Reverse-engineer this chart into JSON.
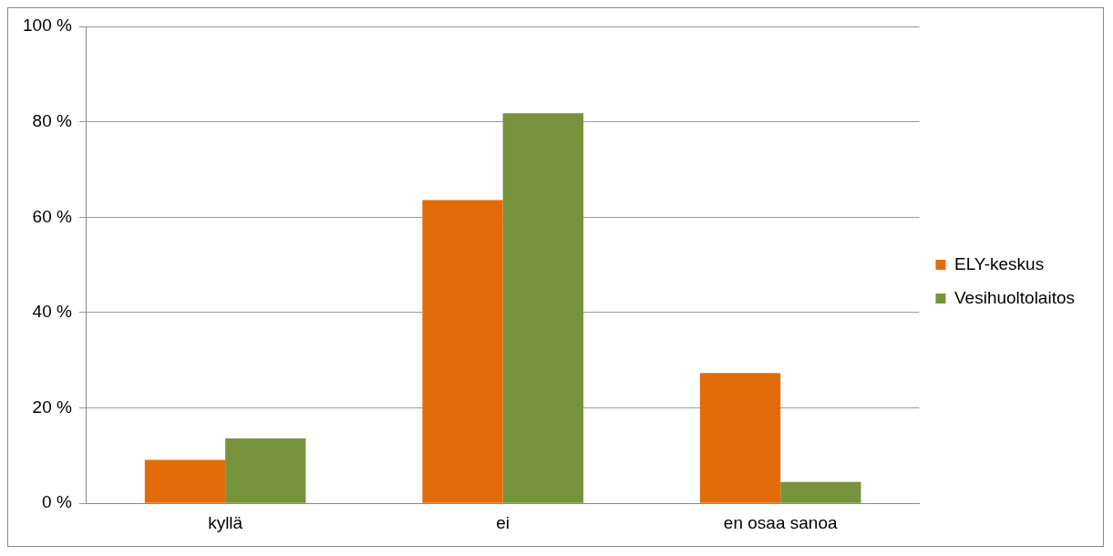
{
  "chart_data": {
    "type": "bar",
    "categories": [
      "kyllä",
      "ei",
      "en osaa sanoa"
    ],
    "series": [
      {
        "name": "ELY-keskus",
        "color": "#e36c0a",
        "values": [
          9.1,
          63.6,
          27.3
        ]
      },
      {
        "name": "Vesihuoltolaitos",
        "color": "#77933c",
        "values": [
          13.6,
          81.8,
          4.5
        ]
      }
    ],
    "ylim": [
      0,
      100
    ],
    "yticks": [
      {
        "value": 0,
        "label": "0 %"
      },
      {
        "value": 20,
        "label": "20 %"
      },
      {
        "value": 40,
        "label": "40 %"
      },
      {
        "value": 60,
        "label": "60 %"
      },
      {
        "value": 80,
        "label": "80 %"
      },
      {
        "value": 100,
        "label": "100 %"
      }
    ],
    "grid": "y",
    "legend": "right"
  }
}
